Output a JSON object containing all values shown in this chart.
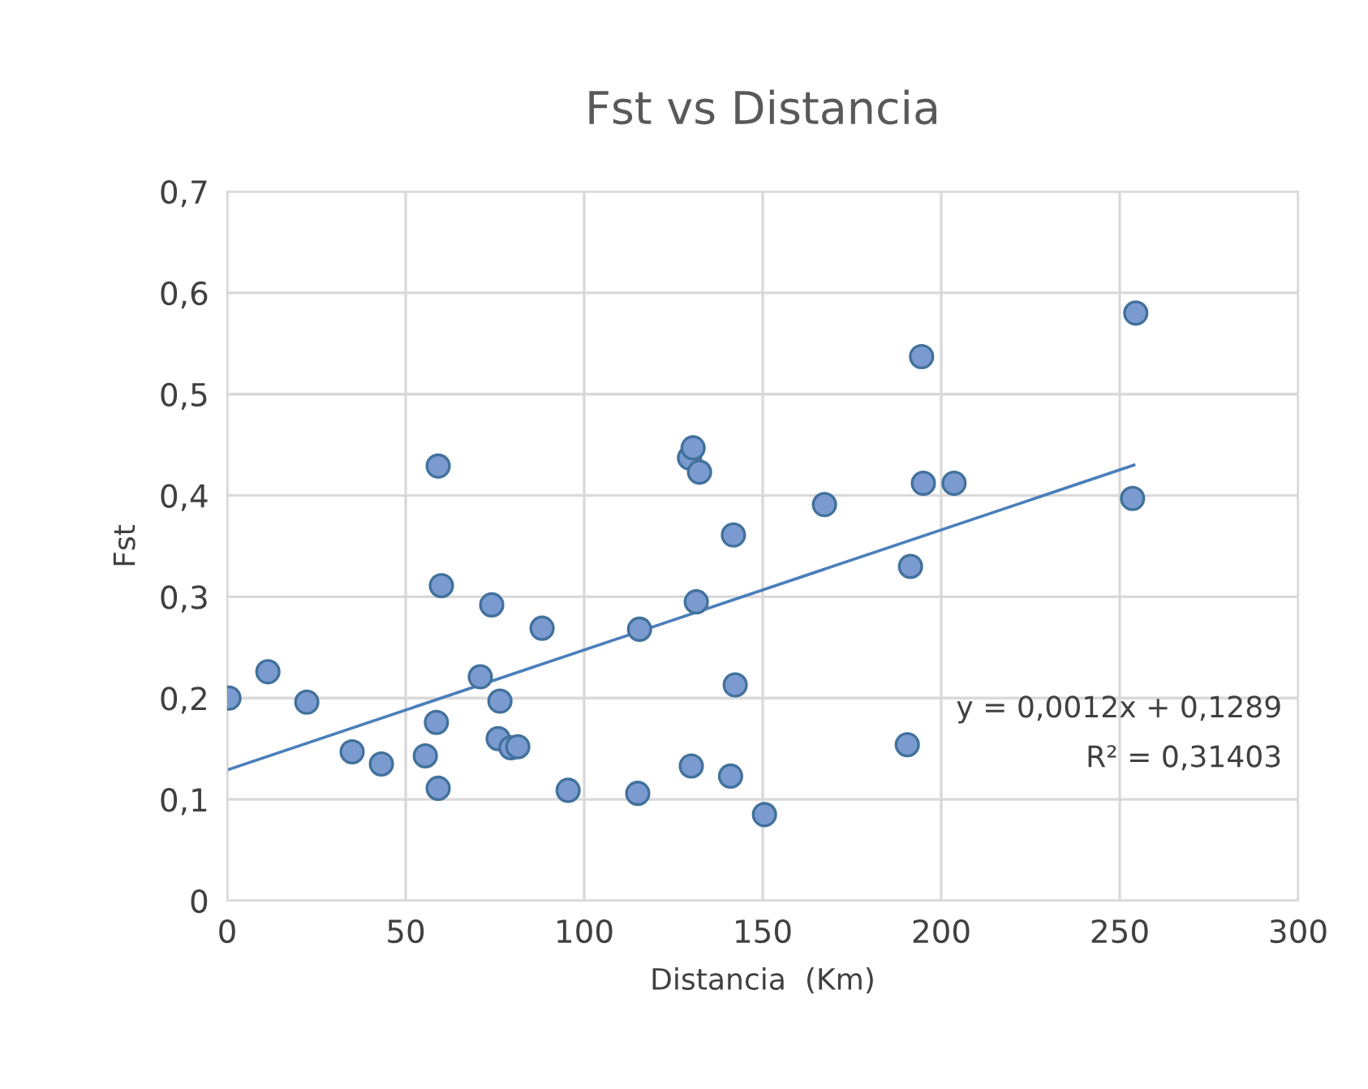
{
  "chart_data": {
    "type": "scatter",
    "title": "Fst vs Distancia",
    "xlabel": "Distancia  (Km)",
    "ylabel": "Fst",
    "xlim": [
      0,
      300
    ],
    "xticks": [
      0,
      50,
      100,
      150,
      200,
      250,
      300
    ],
    "ylim": [
      0,
      0.7
    ],
    "yticks": [
      0,
      {
        "value": 0.1,
        "label": "0,1"
      },
      {
        "value": 0.2,
        "label": "0,2"
      },
      {
        "value": 0.3,
        "label": "0,3"
      },
      {
        "value": 0.4,
        "label": "0,4"
      },
      {
        "value": 0.5,
        "label": "0,5"
      },
      {
        "value": 0.6,
        "label": "0,6"
      },
      {
        "value": 0.7,
        "label": "0,7"
      }
    ],
    "grid": true,
    "legend": false,
    "series": [
      {
        "marker": "circle",
        "color": "#7b9bd0",
        "x": [
          0.5,
          11.4,
          22.3,
          35,
          43.2,
          55.5,
          59.1,
          60,
          58.6,
          59.1,
          70.9,
          74.1,
          76.4,
          75.9,
          79.5,
          81.4,
          88.2,
          95.5,
          115,
          115.5,
          129.5,
          130.5,
          132.3,
          131.4,
          130,
          141.8,
          142.3,
          141,
          150.5,
          167.3,
          191.4,
          190.5,
          194.5,
          195,
          203.6,
          254.5,
          253.6
        ],
        "values": [
          0.2,
          0.226,
          0.196,
          0.147,
          0.135,
          0.143,
          0.429,
          0.311,
          0.176,
          0.111,
          0.221,
          0.292,
          0.197,
          0.16,
          0.151,
          0.152,
          0.269,
          0.109,
          0.106,
          0.268,
          0.437,
          0.447,
          0.423,
          0.295,
          0.133,
          0.361,
          0.213,
          0.123,
          0.085,
          0.391,
          0.33,
          0.154,
          0.537,
          0.412,
          0.412,
          0.58,
          0.397
        ]
      },
      {
        "type": "line",
        "marker": "none",
        "color": "#4a7ebb",
        "x": [
          0,
          254
        ],
        "values": [
          0.129,
          0.43
        ]
      }
    ],
    "annotations": [
      "y = 0,0012x + 0,1289",
      "R² = 0,31403"
    ]
  }
}
